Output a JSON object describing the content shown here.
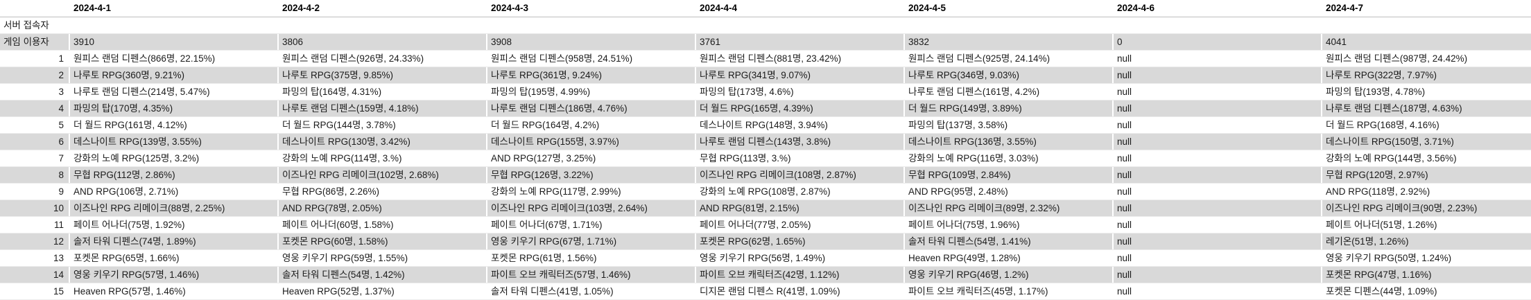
{
  "table": {
    "dates": [
      "2024-4-1",
      "2024-4-2",
      "2024-4-3",
      "2024-4-4",
      "2024-4-5",
      "2024-4-6",
      "2024-4-7"
    ],
    "server_row": {
      "label": "서버 접속자",
      "values": [
        "",
        "",
        "",
        "",
        "",
        "",
        ""
      ]
    },
    "users_row": {
      "label": "게임 이용자",
      "values": [
        "3910",
        "3806",
        "3908",
        "3761",
        "3832",
        "0",
        "4041"
      ]
    },
    "rows": [
      {
        "rank": "1",
        "values": [
          "원피스 랜덤 디펜스(866명, 22.15%)",
          "원피스 랜덤 디펜스(926명, 24.33%)",
          "원피스 랜덤 디펜스(958명, 24.51%)",
          "원피스 랜덤 디펜스(881명, 23.42%)",
          "원피스 랜덤 디펜스(925명, 24.14%)",
          "null",
          "원피스 랜덤 디펜스(987명, 24.42%)"
        ]
      },
      {
        "rank": "2",
        "values": [
          "나루토 RPG(360명, 9.21%)",
          "나루토 RPG(375명, 9.85%)",
          "나루토 RPG(361명, 9.24%)",
          "나루토 RPG(341명, 9.07%)",
          "나루토 RPG(346명, 9.03%)",
          "null",
          "나루토 RPG(322명, 7.97%)"
        ]
      },
      {
        "rank": "3",
        "values": [
          "나루토 랜덤 디펜스(214명, 5.47%)",
          "파밍의 탑(164명, 4.31%)",
          "파밍의 탑(195명, 4.99%)",
          "파밍의 탑(173명, 4.6%)",
          "나루토 랜덤 디펜스(161명, 4.2%)",
          "null",
          "파밍의 탑(193명, 4.78%)"
        ]
      },
      {
        "rank": "4",
        "values": [
          "파밍의 탑(170명, 4.35%)",
          "나루토 랜덤 디펜스(159명, 4.18%)",
          "나루토 랜덤 디펜스(186명, 4.76%)",
          "더 월드 RPG(165명, 4.39%)",
          "더 월드 RPG(149명, 3.89%)",
          "null",
          "나루토 랜덤 디펜스(187명, 4.63%)"
        ]
      },
      {
        "rank": "5",
        "values": [
          "더 월드 RPG(161명, 4.12%)",
          "더 월드 RPG(144명, 3.78%)",
          "더 월드 RPG(164명, 4.2%)",
          "데스나이트 RPG(148명, 3.94%)",
          "파밍의 탑(137명, 3.58%)",
          "null",
          "더 월드 RPG(168명, 4.16%)"
        ]
      },
      {
        "rank": "6",
        "values": [
          "데스나이트 RPG(139명, 3.55%)",
          "데스나이트 RPG(130명, 3.42%)",
          "데스나이트 RPG(155명, 3.97%)",
          "나루토 랜덤 디펜스(143명, 3.8%)",
          "데스나이트 RPG(136명, 3.55%)",
          "null",
          "데스나이트 RPG(150명, 3.71%)"
        ]
      },
      {
        "rank": "7",
        "values": [
          "강화의 노예 RPG(125명, 3.2%)",
          "강화의 노예 RPG(114명, 3.%)",
          "AND RPG(127명, 3.25%)",
          "무협 RPG(113명, 3.%)",
          "강화의 노예 RPG(116명, 3.03%)",
          "null",
          "강화의 노예 RPG(144명, 3.56%)"
        ]
      },
      {
        "rank": "8",
        "values": [
          "무협 RPG(112명, 2.86%)",
          "이즈나인 RPG 리메이크(102명, 2.68%)",
          "무협 RPG(126명, 3.22%)",
          "이즈나인 RPG 리메이크(108명, 2.87%)",
          "무협 RPG(109명, 2.84%)",
          "null",
          "무협 RPG(120명, 2.97%)"
        ]
      },
      {
        "rank": "9",
        "values": [
          "AND RPG(106명, 2.71%)",
          "무협 RPG(86명, 2.26%)",
          "강화의 노예 RPG(117명, 2.99%)",
          "강화의 노예 RPG(108명, 2.87%)",
          "AND RPG(95명, 2.48%)",
          "null",
          "AND RPG(118명, 2.92%)"
        ]
      },
      {
        "rank": "10",
        "values": [
          "이즈나인 RPG 리메이크(88명, 2.25%)",
          "AND RPG(78명, 2.05%)",
          "이즈나인 RPG 리메이크(103명, 2.64%)",
          "AND RPG(81명, 2.15%)",
          "이즈나인 RPG 리메이크(89명, 2.32%)",
          "null",
          "이즈나인 RPG 리메이크(90명, 2.23%)"
        ]
      },
      {
        "rank": "11",
        "values": [
          "페이트 어나더(75명, 1.92%)",
          "페이트 어나더(60명, 1.58%)",
          "페이트 어나더(67명, 1.71%)",
          "페이트 어나더(77명, 2.05%)",
          "페이트 어나더(75명, 1.96%)",
          "null",
          "페이트 어나더(51명, 1.26%)"
        ]
      },
      {
        "rank": "12",
        "values": [
          "솔저 타워 디펜스(74명, 1.89%)",
          "포켓몬 RPG(60명, 1.58%)",
          "영웅 키우기 RPG(67명, 1.71%)",
          "포켓몬 RPG(62명, 1.65%)",
          "솔저 타워 디펜스(54명, 1.41%)",
          "null",
          "레기온(51명, 1.26%)"
        ]
      },
      {
        "rank": "13",
        "values": [
          "포켓몬 RPG(65명, 1.66%)",
          "영웅 키우기 RPG(59명, 1.55%)",
          "포켓몬 RPG(61명, 1.56%)",
          "영웅 키우기 RPG(56명, 1.49%)",
          "Heaven RPG(49명, 1.28%)",
          "null",
          "영웅 키우기 RPG(50명, 1.24%)"
        ]
      },
      {
        "rank": "14",
        "values": [
          "영웅 키우기 RPG(57명, 1.46%)",
          "솔저 타워 디펜스(54명, 1.42%)",
          "파이트 오브 캐릭터즈(57명, 1.46%)",
          "파이트 오브 캐릭터즈(42명, 1.12%)",
          "영웅 키우기 RPG(46명, 1.2%)",
          "null",
          "포켓몬 RPG(47명, 1.16%)"
        ]
      },
      {
        "rank": "15",
        "values": [
          "Heaven RPG(57명, 1.46%)",
          "Heaven RPG(52명, 1.37%)",
          "솔저 타워 디펜스(41명, 1.05%)",
          "디지몬 랜덤 디펜스 R(41명, 1.09%)",
          "파이트 오브 캐릭터즈(45명, 1.17%)",
          "null",
          "포켓몬 디펜스(44명, 1.09%)"
        ]
      }
    ]
  }
}
